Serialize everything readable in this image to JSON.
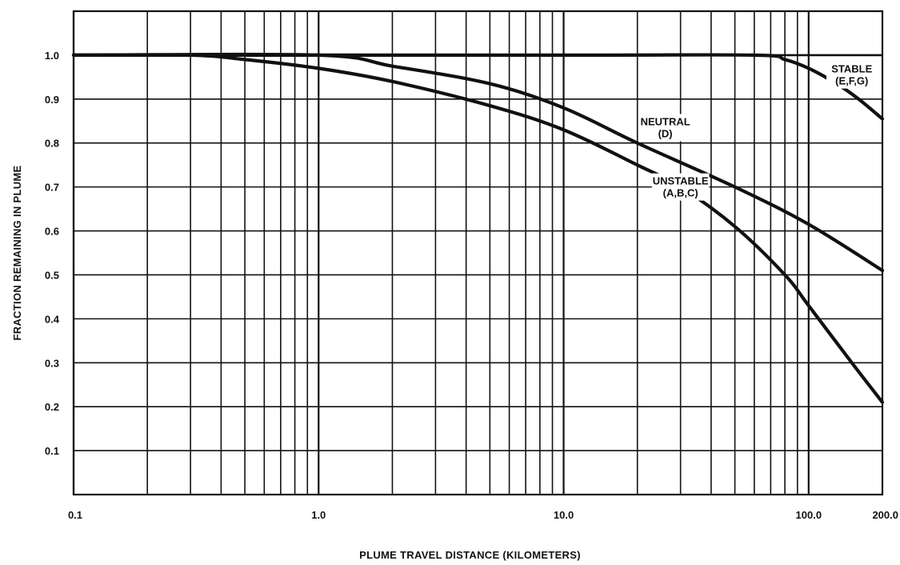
{
  "chart_data": {
    "type": "line",
    "title": "",
    "xlabel": "PLUME TRAVEL DISTANCE (KILOMETERS)",
    "ylabel": "FRACTION REMAINING IN PLUME",
    "x_scale": "log",
    "xlim": [
      0.1,
      200.0
    ],
    "ylim": [
      0.0,
      1.1
    ],
    "grid": true,
    "legend": "none",
    "x_ticks": [
      {
        "value": 0.1,
        "label": "0.1"
      },
      {
        "value": 1.0,
        "label": "1.0"
      },
      {
        "value": 10.0,
        "label": "10.0"
      },
      {
        "value": 100.0,
        "label": "100.0"
      },
      {
        "value": 200.0,
        "label": "200.0"
      }
    ],
    "y_ticks": [
      {
        "value": 0.1,
        "label": "0.1"
      },
      {
        "value": 0.2,
        "label": "0.2"
      },
      {
        "value": 0.3,
        "label": "0.3"
      },
      {
        "value": 0.4,
        "label": "0.4"
      },
      {
        "value": 0.5,
        "label": "0.5"
      },
      {
        "value": 0.6,
        "label": "0.6"
      },
      {
        "value": 0.7,
        "label": "0.7"
      },
      {
        "value": 0.8,
        "label": "0.8"
      },
      {
        "value": 0.9,
        "label": "0.9"
      },
      {
        "value": 1.0,
        "label": "1.0"
      }
    ],
    "series": [
      {
        "id": "stable",
        "label_lines": [
          "STABLE",
          "(E,F,G)"
        ],
        "label_anchor": {
          "x": 150,
          "y": 0.955
        },
        "x": [
          0.1,
          10.0,
          60.0,
          80.0,
          100.0,
          130.0,
          160.0,
          200.0
        ],
        "y": [
          1.0,
          1.0,
          1.0,
          0.99,
          0.97,
          0.935,
          0.9,
          0.855
        ]
      },
      {
        "id": "neutral",
        "label_lines": [
          "NEUTRAL",
          "(D)"
        ],
        "label_anchor": {
          "x": 26,
          "y": 0.835
        },
        "x": [
          0.1,
          1.0,
          2.0,
          5.0,
          10.0,
          20.0,
          50.0,
          100.0,
          200.0
        ],
        "y": [
          1.0,
          1.0,
          0.975,
          0.935,
          0.88,
          0.8,
          0.7,
          0.615,
          0.51
        ]
      },
      {
        "id": "unstable",
        "label_lines": [
          "UNSTABLE",
          "(A,B,C)"
        ],
        "label_anchor": {
          "x": 30,
          "y": 0.7
        },
        "x": [
          0.1,
          0.3,
          0.5,
          1.0,
          2.0,
          5.0,
          10.0,
          20.0,
          30.0,
          50.0,
          80.0,
          100.0,
          150.0,
          200.0
        ],
        "y": [
          1.0,
          1.0,
          0.99,
          0.97,
          0.94,
          0.885,
          0.83,
          0.75,
          0.7,
          0.61,
          0.5,
          0.43,
          0.3,
          0.21
        ]
      }
    ]
  }
}
